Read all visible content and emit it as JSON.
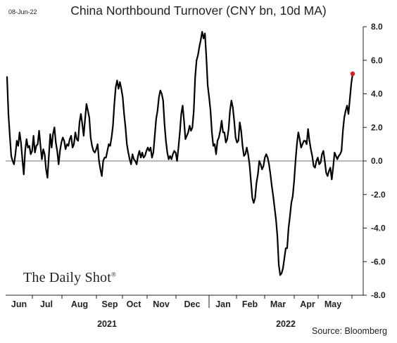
{
  "header": {
    "date": "08-Jun-22",
    "title": "China Northbound Turnover (CNY bn, 10d MA)"
  },
  "footer": {
    "watermark": "The Daily Shot",
    "watermark_mark": "®",
    "source": "Source: Bloomberg"
  },
  "colors": {
    "line": "#000000",
    "highlight_marker": "#e8141b",
    "axis": "#222222"
  },
  "chart_data": {
    "type": "line",
    "title": "China Northbound Turnover (CNY bn, 10d MA)",
    "xlabel": "",
    "ylabel": "",
    "ylim": [
      -8,
      8
    ],
    "yticks": [
      8,
      6,
      4,
      2,
      0,
      -2,
      -4,
      -6,
      -8
    ],
    "ytick_labels": [
      "8.0",
      "6.0",
      "4.0",
      "2.0",
      "0.0",
      "-2.0",
      "-4.0",
      "-6.0",
      "-8.0"
    ],
    "y_axis_side": "right",
    "zero_line": true,
    "grid": false,
    "legend": "none",
    "month_labels": [
      "Jun",
      "Jul",
      "Aug",
      "Sep",
      "Oct",
      "Nov",
      "Dec",
      "Jan",
      "Feb",
      "Mar",
      "Apr",
      "May"
    ],
    "year_labels": [
      "2021",
      "2022"
    ],
    "last_point_marker": true,
    "series": [
      {
        "values": [
          5.0,
          2.8,
          1.5,
          0.3,
          0.0,
          -0.2,
          0.4,
          1.2,
          0.9,
          1.7,
          1.1,
          0.1,
          -0.8,
          0.6,
          1.3,
          0.8,
          0.9,
          0.4,
          0.6,
          1.5,
          0.5,
          0.9,
          1.0,
          1.8,
          0.9,
          0.1,
          0.7,
          0.4,
          -0.5,
          -1.0,
          0.3,
          1.6,
          0.8,
          1.6,
          2.0,
          1.1,
          0.6,
          -0.2,
          0.6,
          1.1,
          1.4,
          1.2,
          0.7,
          1.0,
          0.9,
          1.3,
          1.5,
          0.8,
          1.0,
          1.7,
          1.3,
          1.2,
          2.3,
          2.8,
          2.2,
          1.5,
          2.5,
          3.4,
          3.0,
          2.6,
          1.4,
          0.9,
          0.6,
          0.5,
          0.7,
          1.0,
          0.0,
          -0.5,
          -0.9,
          0.0,
          0.2,
          0.2,
          0.6,
          1.0,
          0.9,
          1.4,
          2.1,
          3.4,
          4.4,
          4.8,
          4.3,
          4.7,
          4.3,
          3.8,
          2.8,
          2.0,
          1.0,
          0.5,
          0.1,
          -0.2,
          0.4,
          0.1,
          0.0,
          -0.2,
          0.3,
          0.6,
          0.2,
          0.5,
          0.2,
          0.3,
          0.6,
          0.8,
          0.6,
          0.8,
          0.2,
          0.5,
          1.5,
          2.5,
          3.0,
          3.8,
          4.2,
          4.0,
          3.6,
          2.2,
          1.2,
          0.5,
          0.1,
          0.3,
          0.1,
          0.4,
          0.6,
          0.5,
          0.0,
          0.8,
          1.7,
          2.8,
          3.3,
          2.4,
          1.3,
          1.5,
          1.7,
          2.1,
          1.8,
          2.0,
          3.0,
          5.0,
          6.0,
          6.3,
          6.8,
          7.2,
          7.7,
          7.3,
          7.6,
          6.2,
          4.5,
          3.8,
          3.0,
          1.7,
          0.9,
          1.0,
          0.4,
          1.2,
          1.4,
          1.8,
          2.4,
          1.7,
          1.7,
          1.1,
          1.3,
          1.9,
          3.0,
          3.6,
          3.2,
          2.4,
          1.4,
          1.1,
          1.2,
          2.3,
          1.8,
          0.9,
          0.3,
          0.4,
          0.8,
          0.4,
          -0.2,
          -1.2,
          -2.2,
          -2.5,
          -2.2,
          -1.3,
          -0.8,
          0.0,
          -0.2,
          -0.5,
          -0.3,
          0.2,
          0.4,
          0.2,
          -0.2,
          -0.8,
          -1.5,
          -2.1,
          -2.8,
          -3.5,
          -4.5,
          -6.2,
          -6.8,
          -6.7,
          -6.4,
          -5.8,
          -5.2,
          -5.2,
          -4.0,
          -3.3,
          -2.5,
          -2.1,
          -1.2,
          0.0,
          1.0,
          1.7,
          1.3,
          0.8,
          1.0,
          1.2,
          1.2,
          1.0,
          1.9,
          1.2,
          0.7,
          0.3,
          -0.3,
          -0.4,
          0.0,
          0.2,
          -0.2,
          -0.1,
          0.4,
          0.6,
          0.0,
          -0.7,
          -0.9,
          -0.6,
          -0.4,
          -1.1,
          -0.4,
          0.5,
          0.3,
          0.1,
          0.3,
          0.4,
          0.6,
          1.8,
          2.6,
          3.0,
          3.3,
          2.8,
          3.7,
          4.6,
          5.2
        ]
      }
    ]
  }
}
